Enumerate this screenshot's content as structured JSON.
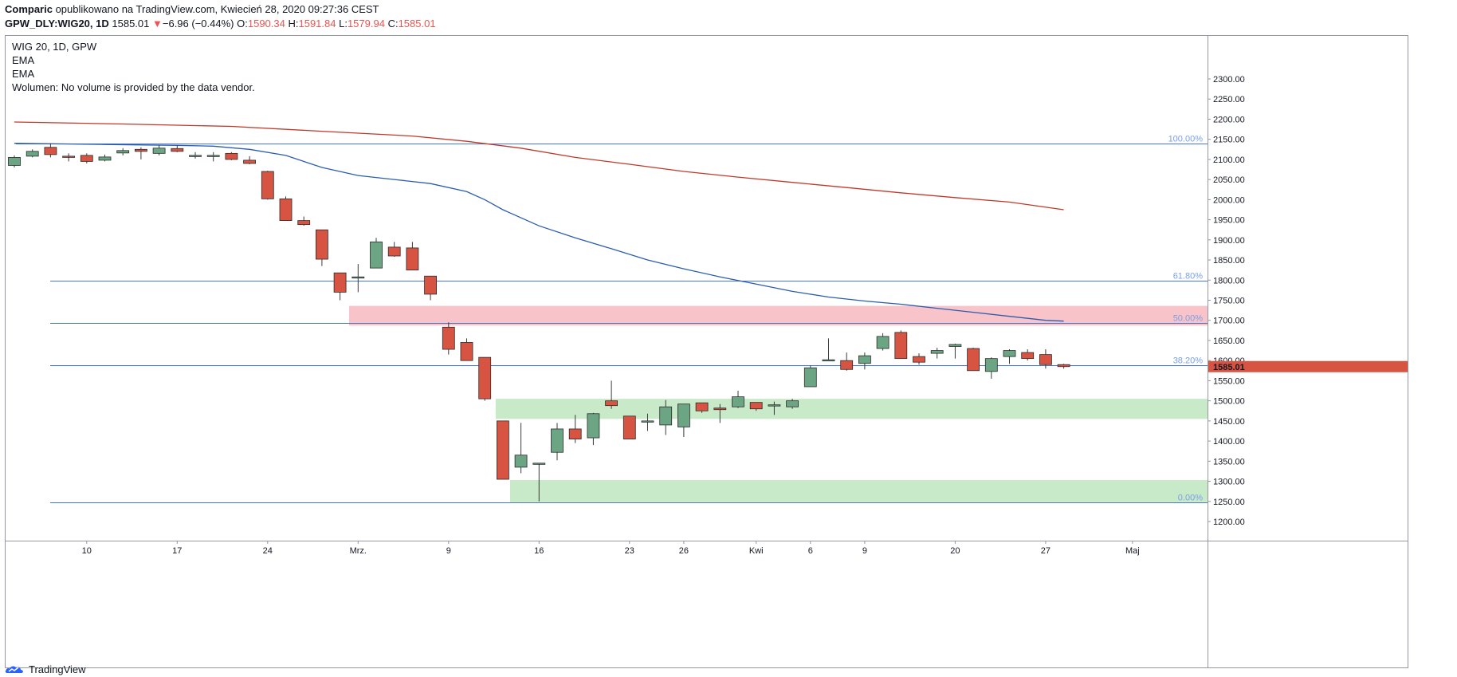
{
  "header": {
    "publisher": "Comparic",
    "published_text": " opublikowano na TradingView.com, Kwiecień 28, 2020 09:27:36 CEST",
    "symbol": "GPW_DLY:WIG20, 1D",
    "last": "1585.01",
    "change": "−6.96 (−0.44%)",
    "o_label": "O:",
    "o_value": "1590.34",
    "h_label": "H:",
    "h_value": "1591.84",
    "l_label": "L:",
    "l_value": "1579.94",
    "c_label": "C:",
    "c_value": "1585.01"
  },
  "legend": {
    "title": "WIG 20, 1D, GPW",
    "ema1": "EMA",
    "ema2": "EMA",
    "volume": "Wolumen: No volume is provided by the data vendor."
  },
  "footer": {
    "brand": "TradingView"
  },
  "colors": {
    "up": "#6ba583",
    "down": "#d75442",
    "ema_fast": "#2962ff",
    "ema_slow": "#c0392b",
    "fib": "#4a78c9",
    "resistance_zone": "#f7b9bf",
    "support_zone": "#bfe6bf"
  },
  "chart_data": {
    "type": "candlestick",
    "title": "WIG 20, 1D, GPW",
    "ylim": [
      1150,
      2300
    ],
    "y_ticks": [
      1200,
      1250,
      1300,
      1350,
      1400,
      1450,
      1500,
      1550,
      1600,
      1650,
      1700,
      1750,
      1800,
      1850,
      1900,
      1950,
      2000,
      2050,
      2100,
      2150,
      2200,
      2250,
      2300
    ],
    "x_ticks": [
      {
        "label": "10",
        "i": 4
      },
      {
        "label": "17",
        "i": 9
      },
      {
        "label": "24",
        "i": 14
      },
      {
        "label": "Mrz.",
        "i": 19
      },
      {
        "label": "9",
        "i": 24
      },
      {
        "label": "16",
        "i": 29
      },
      {
        "label": "23",
        "i": 34
      },
      {
        "label": "26",
        "i": 37
      },
      {
        "label": "Kwi",
        "i": 41
      },
      {
        "label": "6",
        "i": 44
      },
      {
        "label": "9",
        "i": 47
      },
      {
        "label": "20",
        "i": 52
      },
      {
        "label": "27",
        "i": 57
      },
      {
        "label": "Maj",
        "i": 61.8
      }
    ],
    "candles": [
      [
        2085,
        2110,
        2080,
        2105
      ],
      [
        2108,
        2125,
        2105,
        2120
      ],
      [
        2130,
        2140,
        2105,
        2112
      ],
      [
        2108,
        2115,
        2095,
        2105
      ],
      [
        2110,
        2115,
        2090,
        2095
      ],
      [
        2098,
        2112,
        2095,
        2106
      ],
      [
        2116,
        2128,
        2110,
        2122
      ],
      [
        2125,
        2130,
        2100,
        2120
      ],
      [
        2115,
        2135,
        2110,
        2128
      ],
      [
        2127,
        2135,
        2118,
        2120
      ],
      [
        2110,
        2118,
        2102,
        2110
      ],
      [
        2108,
        2118,
        2095,
        2110
      ],
      [
        2115,
        2118,
        2098,
        2100
      ],
      [
        2098,
        2108,
        2088,
        2090
      ],
      [
        2070,
        2072,
        2000,
        2002
      ],
      [
        2002,
        2008,
        1948,
        1948
      ],
      [
        1948,
        1958,
        1935,
        1938
      ],
      [
        1925,
        1925,
        1835,
        1852
      ],
      [
        1818,
        1818,
        1750,
        1770
      ],
      [
        1806,
        1840,
        1770,
        1808
      ],
      [
        1830,
        1905,
        1830,
        1895
      ],
      [
        1882,
        1895,
        1858,
        1860
      ],
      [
        1880,
        1895,
        1825,
        1825
      ],
      [
        1810,
        1810,
        1750,
        1765
      ],
      [
        1683,
        1695,
        1615,
        1628
      ],
      [
        1645,
        1655,
        1600,
        1600
      ],
      [
        1608,
        1608,
        1500,
        1505
      ],
      [
        1450,
        1450,
        1305,
        1305
      ],
      [
        1335,
        1445,
        1320,
        1365
      ],
      [
        1345,
        1345,
        1250,
        1345
      ],
      [
        1372,
        1445,
        1352,
        1430
      ],
      [
        1430,
        1465,
        1395,
        1405
      ],
      [
        1408,
        1470,
        1390,
        1468
      ],
      [
        1500,
        1550,
        1480,
        1488
      ],
      [
        1462,
        1462,
        1405,
        1405
      ],
      [
        1448,
        1468,
        1425,
        1450
      ],
      [
        1440,
        1502,
        1415,
        1485
      ],
      [
        1435,
        1492,
        1410,
        1492
      ],
      [
        1495,
        1495,
        1470,
        1475
      ],
      [
        1482,
        1492,
        1445,
        1478
      ],
      [
        1485,
        1525,
        1482,
        1510
      ],
      [
        1496,
        1496,
        1475,
        1480
      ],
      [
        1490,
        1498,
        1465,
        1490
      ],
      [
        1485,
        1505,
        1480,
        1500
      ],
      [
        1535,
        1588,
        1535,
        1582
      ],
      [
        1602,
        1655,
        1600,
        1602
      ],
      [
        1600,
        1620,
        1575,
        1578
      ],
      [
        1593,
        1620,
        1578,
        1612
      ],
      [
        1630,
        1668,
        1625,
        1660
      ],
      [
        1670,
        1675,
        1605,
        1605
      ],
      [
        1610,
        1618,
        1590,
        1596
      ],
      [
        1618,
        1632,
        1605,
        1625
      ],
      [
        1635,
        1642,
        1605,
        1640
      ],
      [
        1630,
        1632,
        1575,
        1575
      ],
      [
        1573,
        1608,
        1555,
        1605
      ],
      [
        1610,
        1628,
        1592,
        1625
      ],
      [
        1620,
        1628,
        1600,
        1605
      ],
      [
        1615,
        1628,
        1580,
        1590
      ],
      [
        1590,
        1592,
        1580,
        1585
      ]
    ],
    "ema_fast": [
      [
        0,
        2140
      ],
      [
        5,
        2137
      ],
      [
        9,
        2135
      ],
      [
        11,
        2133
      ],
      [
        13,
        2125
      ],
      [
        15,
        2110
      ],
      [
        17,
        2080
      ],
      [
        19,
        2060
      ],
      [
        21,
        2050
      ],
      [
        23,
        2040
      ],
      [
        25,
        2020
      ],
      [
        26,
        2000
      ],
      [
        27,
        1975
      ],
      [
        29,
        1935
      ],
      [
        31,
        1905
      ],
      [
        33,
        1878
      ],
      [
        35,
        1850
      ],
      [
        37,
        1828
      ],
      [
        39,
        1808
      ],
      [
        41,
        1790
      ],
      [
        43,
        1772
      ],
      [
        45,
        1758
      ],
      [
        47,
        1748
      ],
      [
        49,
        1740
      ],
      [
        51,
        1730
      ],
      [
        53,
        1720
      ],
      [
        55,
        1710
      ],
      [
        57,
        1700
      ],
      [
        58,
        1698
      ]
    ],
    "ema_slow": [
      [
        0,
        2193
      ],
      [
        6,
        2188
      ],
      [
        12,
        2182
      ],
      [
        17,
        2170
      ],
      [
        22,
        2158
      ],
      [
        25,
        2145
      ],
      [
        28,
        2128
      ],
      [
        31,
        2105
      ],
      [
        34,
        2088
      ],
      [
        37,
        2070
      ],
      [
        40,
        2056
      ],
      [
        43,
        2043
      ],
      [
        46,
        2030
      ],
      [
        49,
        2017
      ],
      [
        52,
        2005
      ],
      [
        55,
        1994
      ],
      [
        58,
        1975
      ]
    ],
    "fib_levels": [
      {
        "label": "100.00%",
        "value": 2140
      },
      {
        "label": "61.80%",
        "value": 1798
      },
      {
        "label": "50.00%",
        "value": 1693
      },
      {
        "label": "38.20%",
        "value": 1588
      },
      {
        "label": "0.00%",
        "value": 1248
      }
    ],
    "zones": [
      {
        "kind": "resistance",
        "from_i": 18.5,
        "low": 1687,
        "high": 1736
      },
      {
        "kind": "support",
        "from_i": 26.6,
        "low": 1455,
        "high": 1505
      },
      {
        "kind": "support",
        "from_i": 27.4,
        "low": 1248,
        "high": 1303
      }
    ],
    "last_price": "1585.01",
    "last_price_value": 1585
  }
}
